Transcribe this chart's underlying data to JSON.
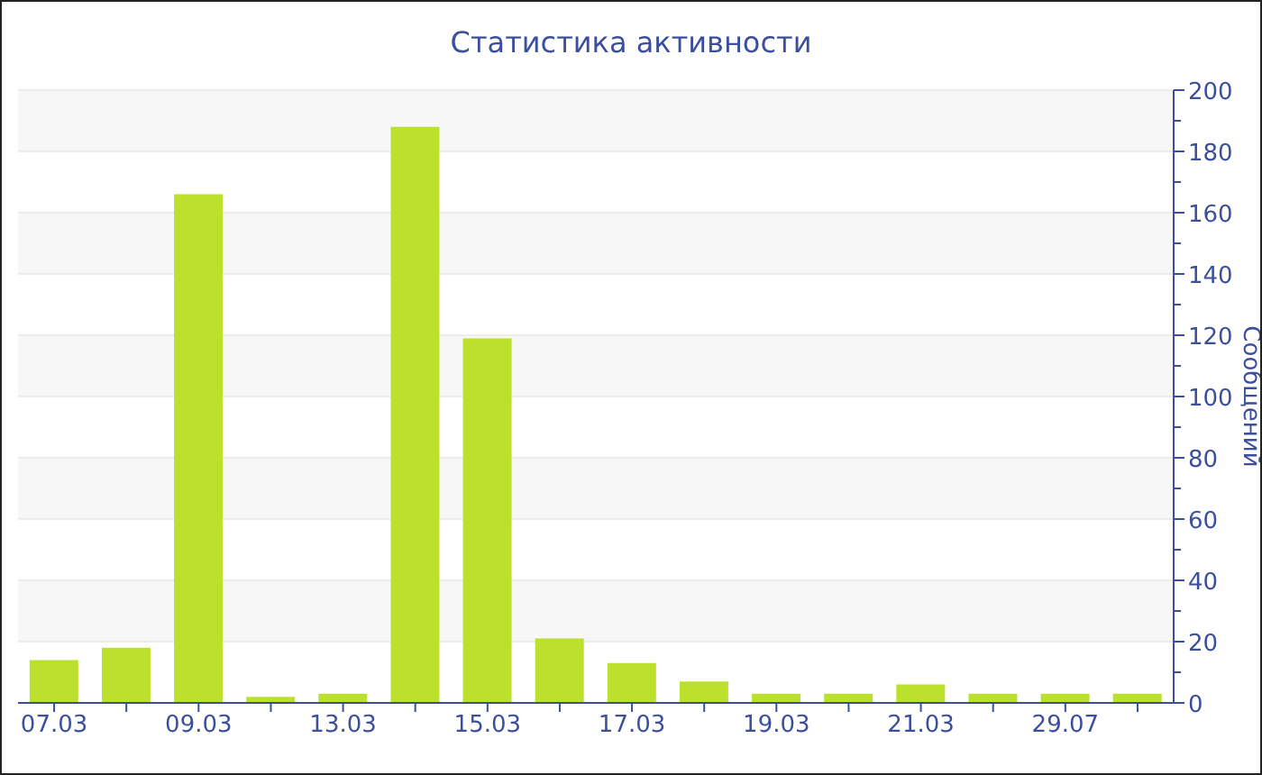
{
  "chart_data": {
    "type": "bar",
    "title": "Статистика активности",
    "ylabel": "Сообщений",
    "categories": [
      "07.03",
      null,
      "09.03",
      null,
      "13.03",
      null,
      "15.03",
      null,
      "17.03",
      null,
      "19.03",
      null,
      "21.03",
      null,
      "29.07",
      null
    ],
    "values": [
      14,
      18,
      166,
      2,
      3,
      188,
      119,
      21,
      13,
      7,
      3,
      3,
      6,
      3,
      3,
      3
    ],
    "color": "#bce02e",
    "ylim": [
      0,
      200
    ],
    "yticks": [
      0,
      {
        "value": 10,
        "label": null
      },
      20,
      {
        "value": 30,
        "label": null
      },
      40,
      {
        "value": 50,
        "label": null
      },
      60,
      {
        "value": 70,
        "label": null
      },
      80,
      {
        "value": 90,
        "label": null
      },
      100,
      {
        "value": 110,
        "label": null
      },
      120,
      {
        "value": 130,
        "label": null
      },
      140,
      {
        "value": 150,
        "label": null
      },
      160,
      {
        "value": 170,
        "label": null
      },
      180,
      {
        "value": 190,
        "label": null
      },
      200
    ],
    "grid": "y",
    "legend": false
  }
}
